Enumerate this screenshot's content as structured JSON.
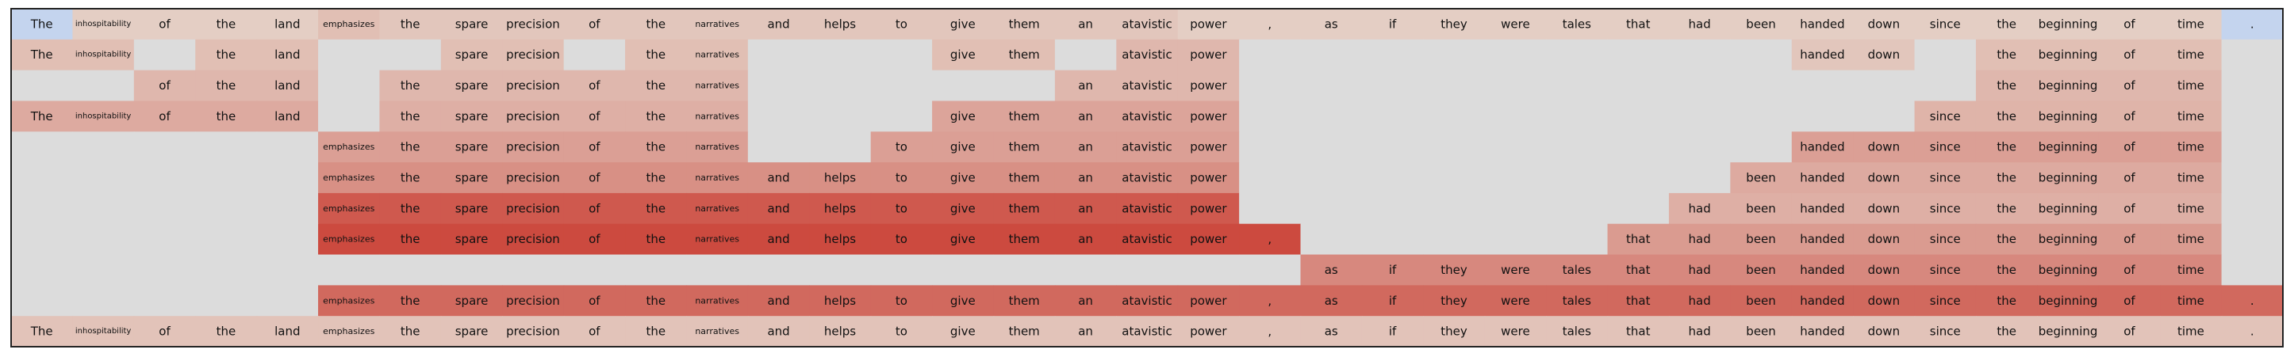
{
  "chart_data": {
    "type": "heatmap",
    "title": "",
    "xlabel": "",
    "ylabel": "",
    "tokens": [
      "The",
      "inhospitability",
      "of",
      "the",
      "land",
      "emphasizes",
      "the",
      "spare",
      "precision",
      "of",
      "the",
      "narratives",
      "and",
      "helps",
      "to",
      "give",
      "them",
      "an",
      "atavistic",
      "power",
      ",",
      "as",
      "if",
      "they",
      "were",
      "tales",
      "that",
      "had",
      "been",
      "handed",
      "down",
      "since",
      "the",
      "beginning",
      "of",
      "time",
      "."
    ],
    "color_scale": {
      "empty": "#dcdcdc",
      "negative": "#c4d4ee",
      "low": "#e5d6cc",
      "high": "#c93a2f"
    },
    "rows": [
      {
        "present": [
          1,
          1,
          1,
          1,
          1,
          1,
          1,
          1,
          1,
          1,
          1,
          1,
          1,
          1,
          1,
          1,
          1,
          1,
          1,
          1,
          1,
          1,
          1,
          1,
          1,
          1,
          1,
          1,
          1,
          1,
          1,
          1,
          1,
          1,
          1,
          1,
          1
        ],
        "values": [
          -0.3,
          0.05,
          0.05,
          0.05,
          0.05,
          0.15,
          0.1,
          0.1,
          0.1,
          0.1,
          0.1,
          0.1,
          0.1,
          0.1,
          0.1,
          0.1,
          0.1,
          0.1,
          0.1,
          0.05,
          0.05,
          0.05,
          0.05,
          0.05,
          0.05,
          0.05,
          0.05,
          0.05,
          0.05,
          0.05,
          0.05,
          0.05,
          0.05,
          0.05,
          0.05,
          0.05,
          -0.3
        ]
      },
      {
        "present": [
          1,
          1,
          0,
          1,
          1,
          0,
          0,
          1,
          1,
          0,
          1,
          1,
          0,
          0,
          0,
          1,
          1,
          0,
          1,
          1,
          0,
          0,
          0,
          0,
          0,
          0,
          0,
          0,
          0,
          1,
          1,
          0,
          1,
          1,
          1,
          1,
          0
        ],
        "values": [
          0.15,
          0.15,
          0,
          0.15,
          0.15,
          0,
          0,
          0.15,
          0.15,
          0,
          0.15,
          0.15,
          0,
          0,
          0,
          0.15,
          0.15,
          0,
          0.2,
          0.2,
          0,
          0,
          0,
          0,
          0,
          0,
          0,
          0,
          0,
          0.1,
          0.1,
          0,
          0.15,
          0.15,
          0.15,
          0.15,
          0
        ]
      },
      {
        "present": [
          0,
          0,
          1,
          1,
          1,
          0,
          1,
          1,
          1,
          1,
          1,
          1,
          0,
          0,
          0,
          0,
          0,
          1,
          1,
          1,
          0,
          0,
          0,
          0,
          0,
          0,
          0,
          0,
          0,
          0,
          0,
          0,
          1,
          1,
          1,
          1,
          0
        ],
        "values": [
          0,
          0,
          0.2,
          0.2,
          0.2,
          0,
          0.2,
          0.2,
          0.2,
          0.2,
          0.2,
          0.2,
          0,
          0,
          0,
          0,
          0,
          0.2,
          0.2,
          0.2,
          0,
          0,
          0,
          0,
          0,
          0,
          0,
          0,
          0,
          0,
          0,
          0,
          0.2,
          0.2,
          0.2,
          0.2,
          0
        ]
      },
      {
        "present": [
          1,
          1,
          1,
          1,
          1,
          0,
          1,
          1,
          1,
          1,
          1,
          1,
          0,
          0,
          0,
          1,
          1,
          1,
          1,
          1,
          0,
          0,
          0,
          0,
          0,
          0,
          0,
          0,
          0,
          0,
          0,
          1,
          1,
          1,
          1,
          1,
          0
        ],
        "values": [
          0.28,
          0.28,
          0.28,
          0.28,
          0.28,
          0,
          0.25,
          0.25,
          0.25,
          0.25,
          0.25,
          0.25,
          0,
          0,
          0,
          0.32,
          0.32,
          0.32,
          0.32,
          0.32,
          0,
          0,
          0,
          0,
          0,
          0,
          0,
          0,
          0,
          0,
          0,
          0.22,
          0.22,
          0.22,
          0.22,
          0.22,
          0
        ]
      },
      {
        "present": [
          0,
          0,
          0,
          0,
          0,
          1,
          1,
          1,
          1,
          1,
          1,
          1,
          0,
          0,
          1,
          1,
          1,
          1,
          1,
          1,
          0,
          0,
          0,
          0,
          0,
          0,
          0,
          0,
          0,
          1,
          1,
          1,
          1,
          1,
          1,
          1,
          0
        ],
        "values": [
          0,
          0,
          0,
          0,
          0,
          0.35,
          0.35,
          0.35,
          0.35,
          0.35,
          0.35,
          0.35,
          0,
          0,
          0.35,
          0.35,
          0.35,
          0.35,
          0.35,
          0.35,
          0,
          0,
          0,
          0,
          0,
          0,
          0,
          0,
          0,
          0.35,
          0.35,
          0.35,
          0.35,
          0.35,
          0.35,
          0.35,
          0
        ]
      },
      {
        "present": [
          0,
          0,
          0,
          0,
          0,
          1,
          1,
          1,
          1,
          1,
          1,
          1,
          1,
          1,
          1,
          1,
          1,
          1,
          1,
          1,
          0,
          0,
          0,
          0,
          0,
          0,
          0,
          0,
          1,
          1,
          1,
          1,
          1,
          1,
          1,
          1,
          0
        ],
        "values": [
          0,
          0,
          0,
          0,
          0,
          0.45,
          0.45,
          0.45,
          0.45,
          0.45,
          0.45,
          0.45,
          0.45,
          0.45,
          0.45,
          0.45,
          0.45,
          0.45,
          0.45,
          0.45,
          0,
          0,
          0,
          0,
          0,
          0,
          0,
          0,
          0.28,
          0.28,
          0.28,
          0.28,
          0.28,
          0.28,
          0.28,
          0.28,
          0
        ]
      },
      {
        "present": [
          0,
          0,
          0,
          0,
          0,
          1,
          1,
          1,
          1,
          1,
          1,
          1,
          1,
          1,
          1,
          1,
          1,
          1,
          1,
          1,
          0,
          0,
          0,
          0,
          0,
          0,
          0,
          1,
          1,
          1,
          1,
          1,
          1,
          1,
          1,
          1,
          0
        ],
        "values": [
          0,
          0,
          0,
          0,
          0,
          0.8,
          0.8,
          0.8,
          0.8,
          0.8,
          0.8,
          0.8,
          0.8,
          0.8,
          0.8,
          0.8,
          0.8,
          0.8,
          0.8,
          0.8,
          0,
          0,
          0,
          0,
          0,
          0,
          0,
          0.25,
          0.25,
          0.25,
          0.25,
          0.25,
          0.25,
          0.25,
          0.25,
          0.25,
          0
        ]
      },
      {
        "present": [
          0,
          0,
          0,
          0,
          0,
          1,
          1,
          1,
          1,
          1,
          1,
          1,
          1,
          1,
          1,
          1,
          1,
          1,
          1,
          1,
          1,
          0,
          0,
          0,
          0,
          0,
          1,
          1,
          1,
          1,
          1,
          1,
          1,
          1,
          1,
          1,
          0
        ],
        "values": [
          0,
          0,
          0,
          0,
          0,
          0.9,
          0.9,
          0.9,
          0.9,
          0.9,
          0.9,
          0.9,
          0.9,
          0.9,
          0.9,
          0.9,
          0.9,
          0.9,
          0.9,
          0.9,
          0.9,
          0,
          0,
          0,
          0,
          0,
          0.38,
          0.38,
          0.38,
          0.38,
          0.38,
          0.38,
          0.38,
          0.38,
          0.38,
          0.38,
          0
        ]
      },
      {
        "present": [
          0,
          0,
          0,
          0,
          0,
          0,
          0,
          0,
          0,
          0,
          0,
          0,
          0,
          0,
          0,
          0,
          0,
          0,
          0,
          0,
          0,
          1,
          1,
          1,
          1,
          1,
          1,
          1,
          1,
          1,
          1,
          1,
          1,
          1,
          1,
          1,
          0
        ],
        "values": [
          0,
          0,
          0,
          0,
          0,
          0,
          0,
          0,
          0,
          0,
          0,
          0,
          0,
          0,
          0,
          0,
          0,
          0,
          0,
          0,
          0,
          0.5,
          0.5,
          0.5,
          0.5,
          0.5,
          0.5,
          0.5,
          0.5,
          0.5,
          0.5,
          0.5,
          0.5,
          0.5,
          0.5,
          0.5,
          0
        ]
      },
      {
        "present": [
          0,
          0,
          0,
          0,
          0,
          1,
          1,
          1,
          1,
          1,
          1,
          1,
          1,
          1,
          1,
          1,
          1,
          1,
          1,
          1,
          1,
          1,
          1,
          1,
          1,
          1,
          1,
          1,
          1,
          1,
          1,
          1,
          1,
          1,
          1,
          1,
          1
        ],
        "values": [
          0,
          0,
          0,
          0,
          0,
          0.7,
          0.7,
          0.7,
          0.7,
          0.7,
          0.7,
          0.7,
          0.7,
          0.7,
          0.7,
          0.7,
          0.7,
          0.7,
          0.7,
          0.7,
          0.7,
          0.7,
          0.7,
          0.7,
          0.7,
          0.7,
          0.7,
          0.7,
          0.7,
          0.7,
          0.7,
          0.7,
          0.7,
          0.7,
          0.7,
          0.7,
          0.7
        ]
      },
      {
        "present": [
          1,
          1,
          1,
          1,
          1,
          1,
          1,
          1,
          1,
          1,
          1,
          1,
          1,
          1,
          1,
          1,
          1,
          1,
          1,
          1,
          1,
          1,
          1,
          1,
          1,
          1,
          1,
          1,
          1,
          1,
          1,
          1,
          1,
          1,
          1,
          1,
          1
        ],
        "values": [
          0.12,
          0.12,
          0.12,
          0.12,
          0.12,
          0.12,
          0.12,
          0.12,
          0.12,
          0.12,
          0.12,
          0.12,
          0.12,
          0.12,
          0.12,
          0.12,
          0.12,
          0.12,
          0.12,
          0.12,
          0.12,
          0.12,
          0.12,
          0.12,
          0.12,
          0.12,
          0.12,
          0.12,
          0.12,
          0.12,
          0.12,
          0.12,
          0.12,
          0.12,
          0.12,
          0.12,
          0.12
        ]
      }
    ]
  }
}
